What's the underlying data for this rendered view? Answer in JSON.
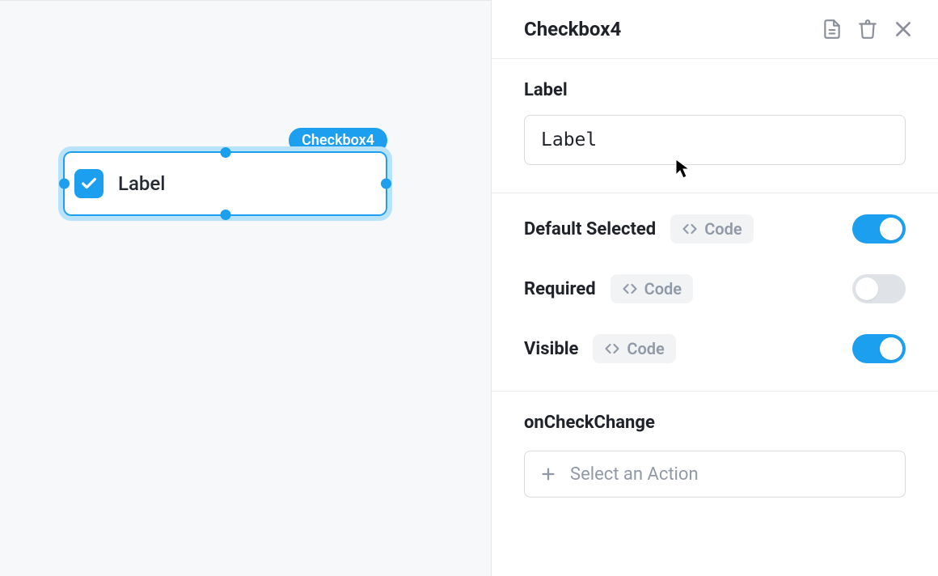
{
  "colors": {
    "accent": "#1d9ff0",
    "selectionOutline": "#b8e3fb",
    "canvasBg": "#f7f8fa",
    "panelBorder": "#ececef",
    "textPrimary": "#1f2329",
    "muted": "#9099a6",
    "toggleOff": "#dfe2e6",
    "inputBorder": "#d7d9dd"
  },
  "canvas": {
    "component": {
      "tag": "Checkbox4",
      "label": "Label",
      "checked": true
    }
  },
  "panel": {
    "title": "Checkbox4",
    "sections": {
      "label": {
        "heading": "Label",
        "value": "Label"
      },
      "toggles": {
        "codeChipLabel": "Code",
        "rows": [
          {
            "label": "Default Selected",
            "on": true
          },
          {
            "label": "Required",
            "on": false
          },
          {
            "label": "Visible",
            "on": true
          }
        ]
      },
      "event": {
        "heading": "onCheckChange",
        "placeholder": "Select an Action"
      }
    }
  }
}
